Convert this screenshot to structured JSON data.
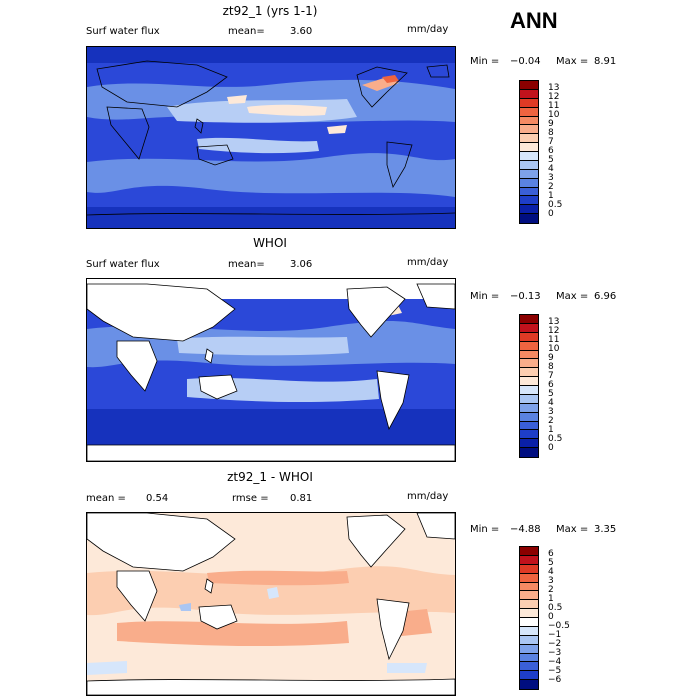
{
  "header": {
    "season": "ANN"
  },
  "panels": [
    {
      "id": "model",
      "title": "zt92_1 (yrs 1-1)",
      "field_label": "Surf water flux",
      "stat_left_label": "",
      "stat_left_value": "",
      "stat_label": "mean=",
      "stat_value": "3.60",
      "units": "mm/day",
      "min_label": "Min =",
      "min_value": "−0.04",
      "max_label": "Max =",
      "max_value": "8.91",
      "legend": {
        "labels": [
          "13",
          "12",
          "11",
          "10",
          "9",
          "8",
          "7",
          "6",
          "5",
          "4",
          "3",
          "2",
          "1",
          "0.5",
          "0"
        ],
        "colors": [
          "#8b0000",
          "#c1121c",
          "#df3a25",
          "#ef6440",
          "#f58a63",
          "#f9ad8b",
          "#fcceb1",
          "#fde9d9",
          "#d6e6fb",
          "#aac6f3",
          "#7ea2ea",
          "#5a82e1",
          "#3a5fd7",
          "#1e3ec8",
          "#0a20a8",
          "#000e80"
        ]
      }
    },
    {
      "id": "obs",
      "title": "WHOI",
      "field_label": "Surf water flux",
      "stat_left_label": "",
      "stat_left_value": "",
      "stat_label": "mean=",
      "stat_value": "3.06",
      "units": "mm/day",
      "min_label": "Min =",
      "min_value": "−0.13",
      "max_label": "Max =",
      "max_value": "6.96",
      "legend": {
        "labels": [
          "13",
          "12",
          "11",
          "10",
          "9",
          "8",
          "7",
          "6",
          "5",
          "4",
          "3",
          "2",
          "1",
          "0.5",
          "0"
        ],
        "colors": [
          "#8b0000",
          "#c1121c",
          "#df3a25",
          "#ef6440",
          "#f58a63",
          "#f9ad8b",
          "#fcceb1",
          "#fde9d9",
          "#d6e6fb",
          "#aac6f3",
          "#7ea2ea",
          "#5a82e1",
          "#3a5fd7",
          "#1e3ec8",
          "#0a20a8",
          "#000e80"
        ]
      }
    },
    {
      "id": "diff",
      "title": "zt92_1 - WHOI",
      "field_label": "",
      "stat_left_label": "mean =",
      "stat_left_value": "0.54",
      "stat_label": "rmse =",
      "stat_value": "0.81",
      "units": "mm/day",
      "min_label": "Min =",
      "min_value": "−4.88",
      "max_label": "Max =",
      "max_value": "3.35",
      "legend": {
        "labels": [
          "6",
          "5",
          "4",
          "3",
          "2",
          "1",
          "0.5",
          "0",
          "−0.5",
          "−1",
          "−2",
          "−3",
          "−4",
          "−5",
          "−6"
        ],
        "colors": [
          "#8b0000",
          "#c1121c",
          "#df3a25",
          "#ef6440",
          "#f58a63",
          "#f9ad8b",
          "#fcceb1",
          "#fde9d9",
          "#ffffff",
          "#d6e6fb",
          "#aac6f3",
          "#7ea2ea",
          "#5a82e1",
          "#3a5fd7",
          "#1e3ec8",
          "#000e80"
        ]
      }
    }
  ]
}
